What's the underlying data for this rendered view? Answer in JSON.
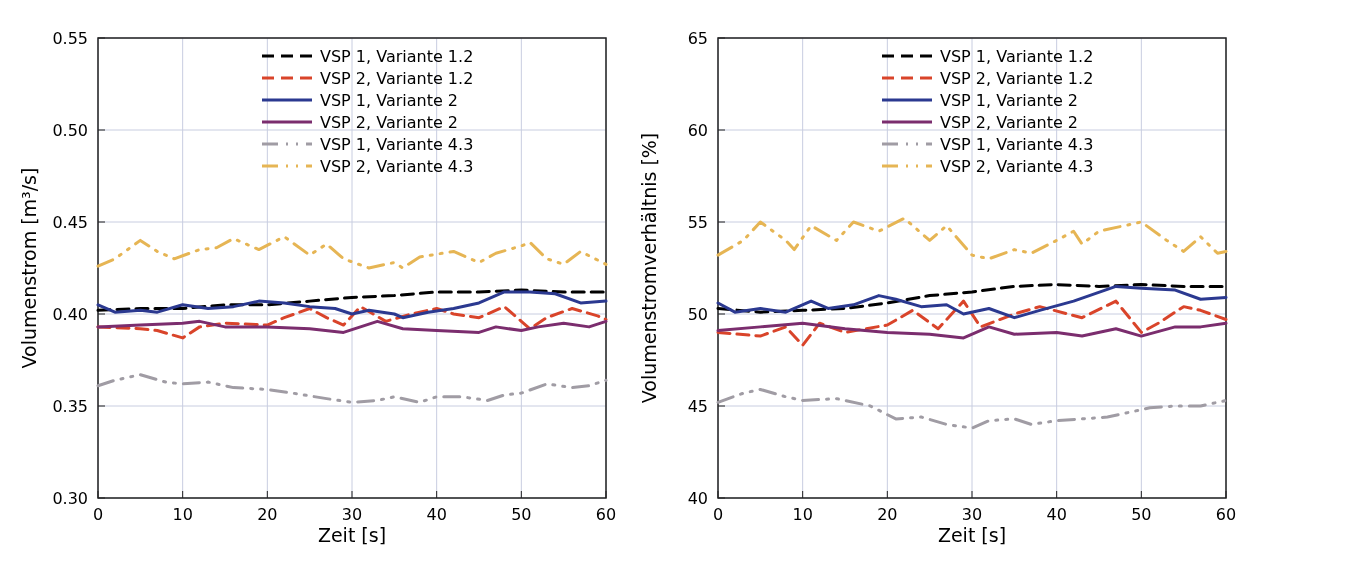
{
  "chart_data": [
    {
      "type": "line",
      "xlabel": "Zeit [s]",
      "ylabel": "Volumenstrom [m³/s]",
      "xlim": [
        0,
        60
      ],
      "ylim": [
        0.3,
        0.55
      ],
      "xticks": [
        0,
        10,
        20,
        30,
        40,
        50,
        60
      ],
      "yticks": [
        {
          "value": 0.3,
          "label": "0.30"
        },
        {
          "value": 0.35,
          "label": "0.35"
        },
        {
          "value": 0.4,
          "label": "0.40"
        },
        {
          "value": 0.45,
          "label": "0.45"
        },
        {
          "value": 0.5,
          "label": "0.50"
        },
        {
          "value": 0.55,
          "label": "0.55"
        }
      ],
      "grid": true,
      "legend": "top",
      "series": [
        {
          "name": "VSP 1, Variante 1.2",
          "color": "#000000",
          "line_style": "dashed",
          "x": [
            0,
            5,
            10,
            15,
            20,
            25,
            30,
            35,
            40,
            45,
            50,
            55,
            60
          ],
          "values": [
            0.402,
            0.403,
            0.403,
            0.405,
            0.405,
            0.407,
            0.409,
            0.41,
            0.412,
            0.412,
            0.413,
            0.412,
            0.412
          ]
        },
        {
          "name": "VSP 2, Variante 1.2",
          "color": "#d9442a",
          "line_style": "dashed",
          "x": [
            0,
            5,
            7,
            10,
            12,
            15,
            20,
            22,
            25,
            27,
            29,
            31,
            34,
            37,
            40,
            42,
            45,
            48,
            50,
            51,
            53,
            56,
            59,
            60
          ],
          "values": [
            0.393,
            0.392,
            0.391,
            0.387,
            0.393,
            0.395,
            0.394,
            0.398,
            0.403,
            0.398,
            0.394,
            0.404,
            0.396,
            0.4,
            0.403,
            0.4,
            0.398,
            0.404,
            0.396,
            0.392,
            0.398,
            0.403,
            0.399,
            0.397
          ]
        },
        {
          "name": "VSP 1, Variante 2",
          "color": "#2b3990",
          "line_style": "solid",
          "x": [
            0,
            2,
            5,
            7,
            10,
            13,
            16,
            19,
            22,
            25,
            28,
            30,
            32,
            35,
            36,
            39,
            42,
            45,
            48,
            51,
            54,
            57,
            60
          ],
          "values": [
            0.405,
            0.401,
            0.402,
            0.401,
            0.405,
            0.403,
            0.404,
            0.407,
            0.406,
            0.404,
            0.403,
            0.4,
            0.402,
            0.4,
            0.398,
            0.401,
            0.403,
            0.406,
            0.412,
            0.412,
            0.411,
            0.406,
            0.407
          ]
        },
        {
          "name": "VSP 2, Variante 2",
          "color": "#7b2d6e",
          "line_style": "solid",
          "x": [
            0,
            5,
            10,
            12,
            15,
            20,
            25,
            29,
            31,
            33,
            36,
            40,
            45,
            47,
            50,
            52,
            55,
            58,
            60
          ],
          "values": [
            0.393,
            0.394,
            0.395,
            0.396,
            0.393,
            0.393,
            0.392,
            0.39,
            0.393,
            0.396,
            0.392,
            0.391,
            0.39,
            0.393,
            0.391,
            0.393,
            0.395,
            0.393,
            0.396
          ]
        },
        {
          "name": "VSP 1, Variante 4.3",
          "color": "#a09ca4",
          "line_style": "dashdot",
          "x": [
            0,
            2,
            5,
            8,
            10,
            13,
            16,
            20,
            23,
            27,
            30,
            33,
            35,
            38,
            40,
            43,
            46,
            48,
            50,
            53,
            56,
            58,
            60
          ],
          "values": [
            0.361,
            0.364,
            0.367,
            0.363,
            0.362,
            0.363,
            0.36,
            0.359,
            0.357,
            0.354,
            0.352,
            0.353,
            0.355,
            0.352,
            0.355,
            0.355,
            0.353,
            0.356,
            0.357,
            0.362,
            0.36,
            0.361,
            0.364
          ]
        },
        {
          "name": "VSP 2, Variante 4.3",
          "color": "#e6b554",
          "line_style": "dashdot",
          "x": [
            0,
            2,
            5,
            7,
            9,
            12,
            14,
            16,
            19,
            22,
            25,
            27,
            29,
            32,
            35,
            36,
            38,
            42,
            45,
            47,
            50,
            51,
            53,
            55,
            57,
            60
          ],
          "values": [
            0.426,
            0.43,
            0.44,
            0.434,
            0.43,
            0.435,
            0.436,
            0.441,
            0.435,
            0.442,
            0.432,
            0.438,
            0.43,
            0.425,
            0.428,
            0.425,
            0.431,
            0.434,
            0.428,
            0.433,
            0.437,
            0.439,
            0.43,
            0.427,
            0.434,
            0.427
          ]
        }
      ]
    },
    {
      "type": "line",
      "xlabel": "Zeit [s]",
      "ylabel": "Volumenstromverhältnis [%]",
      "xlim": [
        0,
        60
      ],
      "ylim": [
        40,
        65
      ],
      "xticks": [
        0,
        10,
        20,
        30,
        40,
        50,
        60
      ],
      "yticks": [
        40,
        45,
        50,
        55,
        60,
        65
      ],
      "grid": true,
      "legend": "top",
      "series": [
        {
          "name": "VSP 1, Variante 1.2",
          "color": "#000000",
          "line_style": "dashed",
          "x": [
            0,
            5,
            10,
            15,
            20,
            25,
            30,
            35,
            40,
            45,
            50,
            55,
            60
          ],
          "values": [
            50.3,
            50.1,
            50.2,
            50.3,
            50.6,
            51,
            51.2,
            51.5,
            51.6,
            51.5,
            51.6,
            51.5,
            51.5
          ]
        },
        {
          "name": "VSP 2, Variante 1.2",
          "color": "#d9442a",
          "line_style": "dashed",
          "x": [
            0,
            5,
            8,
            10,
            12,
            15,
            20,
            23,
            26,
            29,
            31,
            35,
            38,
            43,
            47,
            50,
            52,
            55,
            57,
            60
          ],
          "values": [
            49,
            48.8,
            49.3,
            48.3,
            49.5,
            49,
            49.4,
            50.2,
            49.2,
            50.7,
            49.3,
            50,
            50.4,
            49.8,
            50.7,
            49,
            49.5,
            50.4,
            50.2,
            49.7
          ]
        },
        {
          "name": "VSP 1, Variante 2",
          "color": "#2b3990",
          "line_style": "solid",
          "x": [
            0,
            2,
            5,
            8,
            11,
            13,
            16,
            19,
            21,
            24,
            27,
            29,
            32,
            35,
            38,
            42,
            47,
            50,
            54,
            57,
            60
          ],
          "values": [
            50.6,
            50.1,
            50.3,
            50.1,
            50.7,
            50.3,
            50.5,
            51,
            50.8,
            50.4,
            50.5,
            50,
            50.3,
            49.8,
            50.2,
            50.7,
            51.5,
            51.4,
            51.3,
            50.8,
            50.9
          ]
        },
        {
          "name": "VSP 2, Variante 2",
          "color": "#7b2d6e",
          "line_style": "solid",
          "x": [
            0,
            5,
            10,
            15,
            20,
            25,
            29,
            32,
            35,
            40,
            43,
            47,
            50,
            54,
            57,
            60
          ],
          "values": [
            49.1,
            49.3,
            49.5,
            49.2,
            49,
            48.9,
            48.7,
            49.3,
            48.9,
            49,
            48.8,
            49.2,
            48.8,
            49.3,
            49.3,
            49.5
          ]
        },
        {
          "name": "VSP 1, Variante 4.3",
          "color": "#a09ca4",
          "line_style": "dashdot",
          "x": [
            0,
            3,
            5,
            8,
            10,
            14,
            18,
            21,
            24,
            27,
            30,
            32,
            35,
            37,
            40,
            43,
            46,
            48,
            51,
            54,
            57,
            60
          ],
          "values": [
            45.2,
            45.7,
            45.9,
            45.5,
            45.3,
            45.4,
            45,
            44.3,
            44.4,
            44,
            43.8,
            44.2,
            44.3,
            44,
            44.2,
            44.3,
            44.4,
            44.6,
            44.9,
            45,
            45,
            45.3
          ]
        },
        {
          "name": "VSP 2, Variante 4.3",
          "color": "#e6b554",
          "line_style": "dashdot",
          "x": [
            0,
            3,
            5,
            8,
            9,
            11,
            14,
            16,
            19,
            22,
            25,
            27,
            30,
            32,
            35,
            37,
            40,
            42,
            43,
            45,
            48,
            50,
            53,
            55,
            57,
            59,
            60
          ],
          "values": [
            53.2,
            54,
            55,
            54,
            53.5,
            54.8,
            54,
            55,
            54.5,
            55.2,
            54,
            54.8,
            53.2,
            53,
            53.5,
            53.3,
            54,
            54.5,
            53.8,
            54.5,
            54.8,
            55,
            54,
            53.4,
            54.2,
            53.3,
            53.4
          ]
        }
      ]
    }
  ]
}
